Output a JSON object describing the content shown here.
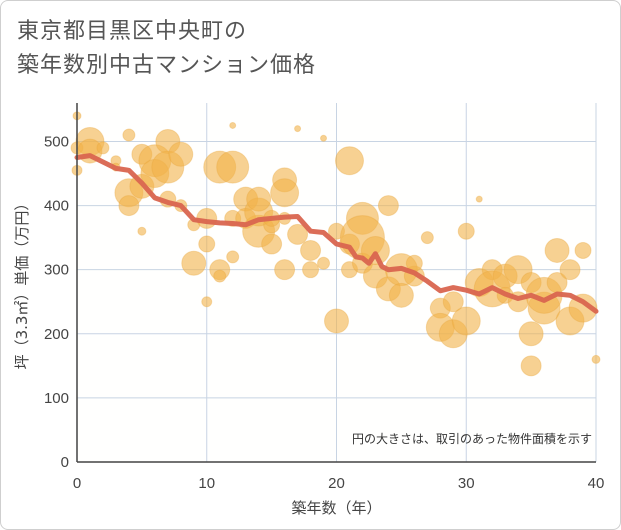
{
  "title_line1": "東京都目黒区中央町の",
  "title_line2": "築年数別中古マンション価格",
  "chart_data": {
    "type": "scatter",
    "xlabel": "築年数（年）",
    "ylabel": "坪（3.3㎡）単価（万円）",
    "xlim": [
      0,
      40
    ],
    "ylim": [
      0,
      560
    ],
    "xticks": [
      "0",
      "10",
      "20",
      "30",
      "40"
    ],
    "yticks": [
      "0",
      "100",
      "200",
      "300",
      "400",
      "500"
    ],
    "xtick_values": [
      0,
      10,
      20,
      30,
      40
    ],
    "ytick_values": [
      0,
      100,
      200,
      300,
      400,
      500
    ],
    "grid": true,
    "annotation": "円の大きさは、取引のあった物件面積を示す",
    "colors": {
      "bubble": "#f2b24a",
      "bubble_edge": "#e8a63c",
      "line": "#d9654f",
      "plot_bg": "#fffffe",
      "grid": "#c8d4e3"
    },
    "series": [
      {
        "kind": "bubble",
        "x": [
          0,
          0,
          0,
          1,
          1,
          2,
          3,
          3,
          4,
          4,
          4,
          5,
          5,
          5,
          6,
          6,
          7,
          7,
          7,
          8,
          8,
          9,
          9,
          10,
          10,
          10,
          11,
          11,
          11,
          12,
          12,
          12,
          12,
          13,
          13,
          14,
          14,
          14,
          15,
          15,
          15,
          16,
          16,
          16,
          16,
          17,
          17,
          18,
          18,
          19,
          19,
          20,
          20,
          21,
          21,
          21,
          22,
          22,
          22,
          23,
          23,
          24,
          24,
          25,
          25,
          26,
          26,
          27,
          28,
          28,
          29,
          29,
          30,
          30,
          31,
          31,
          32,
          32,
          33,
          33,
          34,
          34,
          35,
          35,
          35,
          36,
          36,
          37,
          37,
          38,
          38,
          39,
          39,
          40
        ],
        "y": [
          490,
          455,
          540,
          500,
          485,
          490,
          470,
          460,
          420,
          400,
          510,
          430,
          480,
          360,
          470,
          450,
          500,
          460,
          410,
          480,
          400,
          370,
          310,
          380,
          340,
          250,
          460,
          300,
          290,
          460,
          380,
          320,
          525,
          410,
          380,
          360,
          390,
          410,
          370,
          340,
          380,
          440,
          300,
          380,
          420,
          355,
          520,
          330,
          300,
          310,
          505,
          220,
          360,
          470,
          300,
          340,
          380,
          350,
          310,
          330,
          290,
          270,
          400,
          300,
          260,
          290,
          310,
          350,
          240,
          210,
          200,
          250,
          220,
          360,
          280,
          410,
          300,
          270,
          260,
          290,
          250,
          300,
          200,
          280,
          150,
          240,
          260,
          330,
          280,
          220,
          300,
          240,
          330,
          160
        ],
        "size": [
          6,
          5,
          4,
          14,
          12,
          6,
          5,
          4,
          14,
          10,
          6,
          12,
          10,
          4,
          16,
          14,
          12,
          16,
          8,
          12,
          6,
          6,
          12,
          10,
          8,
          5,
          16,
          10,
          6,
          16,
          8,
          6,
          3,
          12,
          10,
          16,
          14,
          12,
          8,
          10,
          8,
          12,
          10,
          6,
          14,
          10,
          3,
          10,
          8,
          6,
          3,
          12,
          8,
          14,
          8,
          10,
          16,
          22,
          10,
          14,
          12,
          12,
          10,
          16,
          12,
          10,
          8,
          6,
          10,
          14,
          14,
          10,
          14,
          8,
          14,
          3,
          10,
          18,
          8,
          12,
          10,
          14,
          12,
          10,
          10,
          16,
          18,
          12,
          10,
          14,
          10,
          14,
          8,
          4
        ]
      },
      {
        "kind": "line",
        "x": [
          0,
          1,
          2,
          3,
          4,
          5,
          6,
          7,
          8,
          9,
          10,
          11,
          12,
          13,
          14,
          15,
          16,
          17,
          18,
          19,
          20,
          21,
          21.5,
          22,
          22.5,
          23,
          23.5,
          24,
          25,
          26,
          27,
          28,
          29,
          30,
          31,
          32,
          33,
          34,
          35,
          36,
          37,
          38,
          39,
          40
        ],
        "y": [
          475,
          478,
          468,
          458,
          455,
          435,
          412,
          405,
          400,
          378,
          375,
          373,
          372,
          370,
          378,
          380,
          382,
          383,
          360,
          358,
          340,
          335,
          320,
          318,
          310,
          325,
          305,
          300,
          302,
          295,
          282,
          267,
          272,
          268,
          262,
          272,
          262,
          255,
          260,
          252,
          262,
          260,
          250,
          235
        ]
      }
    ]
  }
}
